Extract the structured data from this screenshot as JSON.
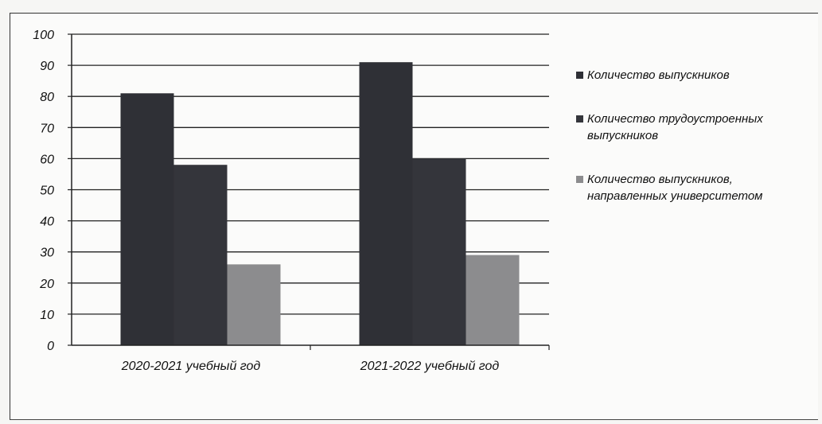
{
  "chart_data": {
    "type": "bar",
    "categories": [
      "2020-2021 учебный год",
      "2021-2022 учебный год"
    ],
    "series": [
      {
        "name": "Количество выпускников",
        "values": [
          81,
          91
        ],
        "color": "#2f3036"
      },
      {
        "name": "Количество трудоустроенных выпускников",
        "values": [
          58,
          60
        ],
        "color": "#34353b"
      },
      {
        "name": "Количество выпускников, направленных университетом",
        "values": [
          26,
          29
        ],
        "color": "#8c8c8e"
      }
    ],
    "ylim": [
      0,
      100
    ],
    "yticks": [
      0,
      10,
      20,
      30,
      40,
      50,
      60,
      70,
      80,
      90,
      100
    ],
    "grid": true,
    "legend_position": "right"
  }
}
